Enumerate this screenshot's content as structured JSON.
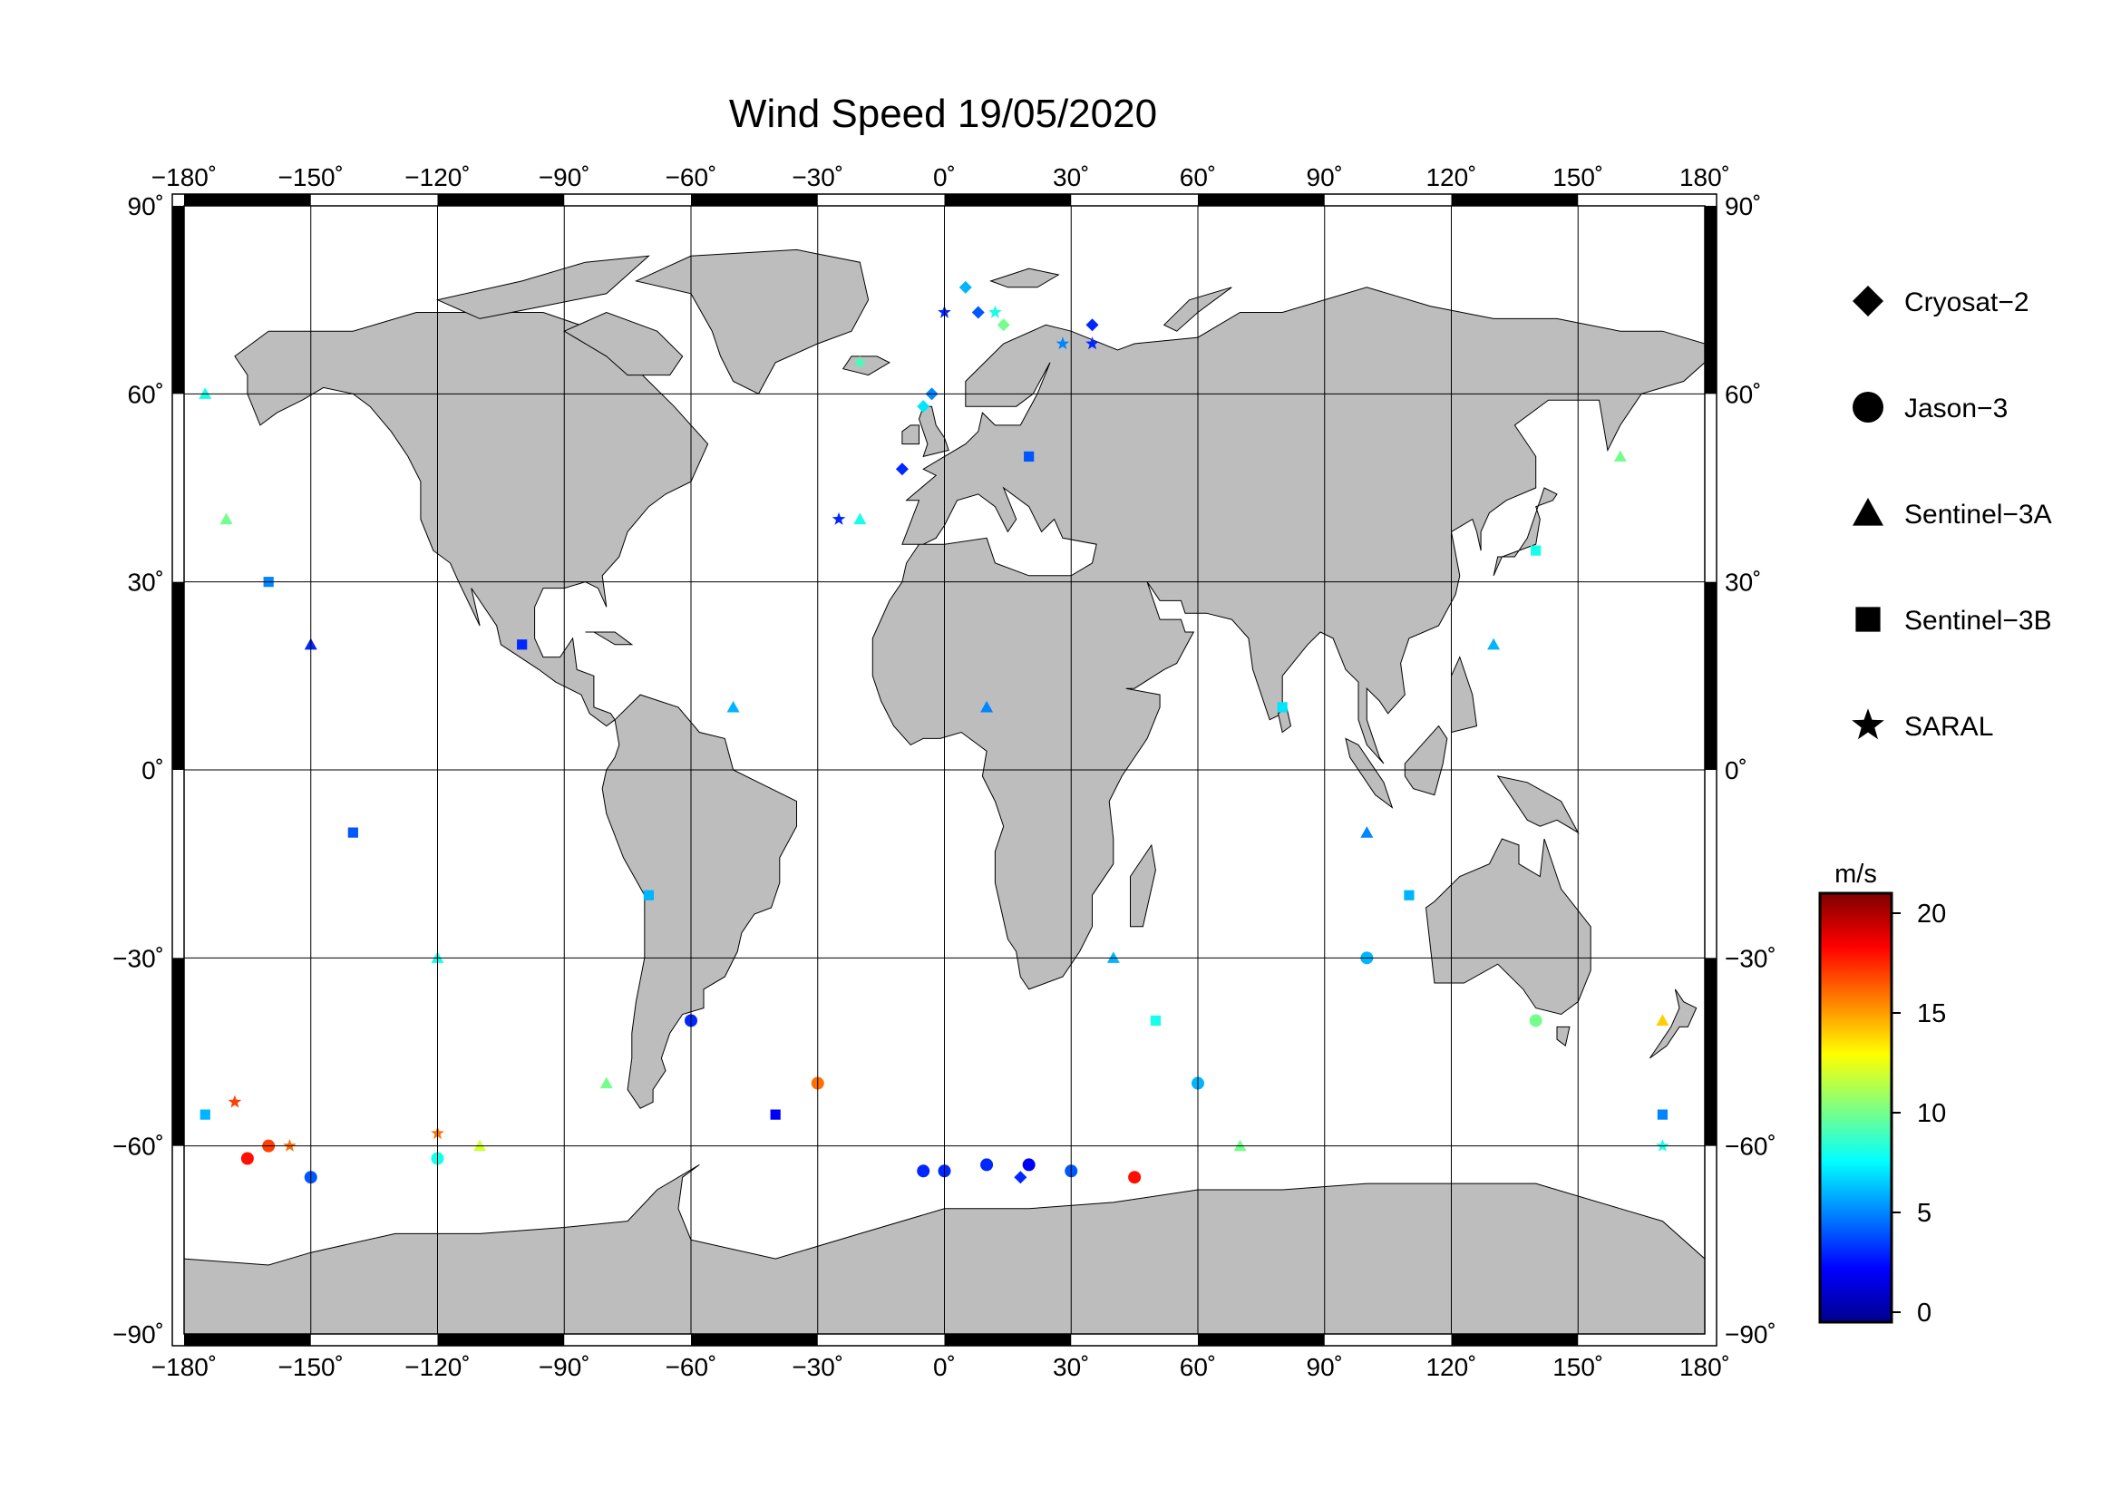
{
  "title": "Wind Speed 19/05/2020",
  "lon_ticks": [
    {
      "lon": -180,
      "label": "−180˚"
    },
    {
      "lon": -150,
      "label": "−150˚"
    },
    {
      "lon": -120,
      "label": "−120˚"
    },
    {
      "lon": -90,
      "label": "−90˚"
    },
    {
      "lon": -60,
      "label": "−60˚"
    },
    {
      "lon": -30,
      "label": "−30˚"
    },
    {
      "lon": 0,
      "label": "0˚"
    },
    {
      "lon": 30,
      "label": "30˚"
    },
    {
      "lon": 60,
      "label": "60˚"
    },
    {
      "lon": 90,
      "label": "90˚"
    },
    {
      "lon": 120,
      "label": "120˚"
    },
    {
      "lon": 150,
      "label": "150˚"
    },
    {
      "lon": 180,
      "label": "180˚"
    }
  ],
  "lat_ticks_left": [
    {
      "lat": 90,
      "label": "90˚"
    },
    {
      "lat": 60,
      "label": "60˚"
    },
    {
      "lat": 30,
      "label": "30˚"
    },
    {
      "lat": 0,
      "label": "0˚"
    },
    {
      "lat": -30,
      "label": "−30˚"
    },
    {
      "lat": -60,
      "label": "−60˚"
    },
    {
      "lat": -90,
      "label": "−90˚"
    }
  ],
  "lat_ticks_right": [
    {
      "lat": 90,
      "label": "90˚"
    },
    {
      "lat": 60,
      "label": "60˚"
    },
    {
      "lat": 30,
      "label": "30˚"
    },
    {
      "lat": 0,
      "label": "0˚"
    },
    {
      "lat": -30,
      "label": "−30˚"
    },
    {
      "lat": -60,
      "label": "−60˚"
    },
    {
      "lat": -90,
      "label": "−90˚"
    }
  ],
  "legend": [
    {
      "symbol": "diamond",
      "label": "Cryosat−2"
    },
    {
      "symbol": "circle",
      "label": "Jason−3"
    },
    {
      "symbol": "triangle",
      "label": "Sentinel−3A"
    },
    {
      "symbol": "square",
      "label": "Sentinel−3B"
    },
    {
      "symbol": "star",
      "label": "SARAL"
    }
  ],
  "colorbar": {
    "unit": "m/s",
    "min": -0.5,
    "max": 21,
    "ticks": [
      {
        "value": 0,
        "label": "0"
      },
      {
        "value": 5,
        "label": "5"
      },
      {
        "value": 10,
        "label": "10"
      },
      {
        "value": 15,
        "label": "15"
      },
      {
        "value": 20,
        "label": "20"
      }
    ],
    "stops": [
      "#00008f",
      "#0000ff",
      "#0080ff",
      "#00ffff",
      "#80ff80",
      "#ffff00",
      "#ff8000",
      "#ff0000",
      "#800000"
    ]
  },
  "colors": {
    "land": "#bdbdbd",
    "ocean": "#ffffff",
    "grid": "#000000"
  },
  "chart_data": {
    "type": "scatter",
    "title": "Wind Speed 19/05/2020",
    "xlim": [
      -180,
      180
    ],
    "ylim": [
      -90,
      90
    ],
    "grid": true,
    "legend_placement": "right",
    "colorbar_label": "m/s",
    "series": [
      {
        "name": "Cryosat−2",
        "marker": "diamond",
        "points": [
          [
            5,
            77,
            6
          ],
          [
            8,
            73,
            4
          ],
          [
            14,
            71,
            10
          ],
          [
            35,
            71,
            3
          ],
          [
            -5,
            58,
            7
          ],
          [
            -10,
            48,
            3
          ],
          [
            -3,
            60,
            5
          ],
          [
            18,
            -65,
            3
          ]
        ]
      },
      {
        "name": "Jason−3",
        "marker": "circle",
        "points": [
          [
            -160,
            -60,
            17
          ],
          [
            -165,
            -62,
            18
          ],
          [
            -150,
            -65,
            4
          ],
          [
            -120,
            -62,
            8
          ],
          [
            -60,
            -40,
            3
          ],
          [
            -30,
            -50,
            16
          ],
          [
            -5,
            -64,
            3
          ],
          [
            0,
            -64,
            3
          ],
          [
            10,
            -63,
            3
          ],
          [
            20,
            -63,
            2
          ],
          [
            30,
            -64,
            4
          ],
          [
            45,
            -65,
            18
          ],
          [
            60,
            -50,
            6
          ],
          [
            100,
            -30,
            6
          ],
          [
            140,
            -40,
            10
          ]
        ]
      },
      {
        "name": "Sentinel−3A",
        "marker": "triangle",
        "points": [
          [
            -175,
            60,
            8
          ],
          [
            -170,
            40,
            10
          ],
          [
            -150,
            20,
            3
          ],
          [
            -120,
            -30,
            8
          ],
          [
            -110,
            -60,
            12
          ],
          [
            -80,
            -50,
            10
          ],
          [
            -50,
            10,
            6
          ],
          [
            -20,
            40,
            8
          ],
          [
            10,
            10,
            5
          ],
          [
            40,
            -30,
            6
          ],
          [
            70,
            -60,
            10
          ],
          [
            100,
            -10,
            5
          ],
          [
            130,
            20,
            6
          ],
          [
            160,
            50,
            10
          ],
          [
            170,
            -40,
            14
          ]
        ]
      },
      {
        "name": "Sentinel−3B",
        "marker": "square",
        "points": [
          [
            -175,
            -55,
            6
          ],
          [
            -160,
            30,
            5
          ],
          [
            -140,
            -10,
            4
          ],
          [
            -100,
            20,
            3
          ],
          [
            -70,
            -20,
            6
          ],
          [
            -40,
            -55,
            2
          ],
          [
            20,
            50,
            4
          ],
          [
            50,
            -40,
            8
          ],
          [
            80,
            10,
            7
          ],
          [
            110,
            -20,
            6
          ],
          [
            140,
            35,
            8
          ],
          [
            170,
            -55,
            5
          ]
        ]
      },
      {
        "name": "SARAL",
        "marker": "star",
        "points": [
          [
            -168,
            -53,
            17
          ],
          [
            -155,
            -60,
            16
          ],
          [
            -120,
            -58,
            16
          ],
          [
            -20,
            65,
            9
          ],
          [
            -25,
            40,
            3
          ],
          [
            0,
            73,
            3
          ],
          [
            12,
            73,
            8
          ],
          [
            28,
            68,
            5
          ],
          [
            35,
            68,
            3
          ],
          [
            170,
            -60,
            8
          ]
        ]
      }
    ]
  }
}
